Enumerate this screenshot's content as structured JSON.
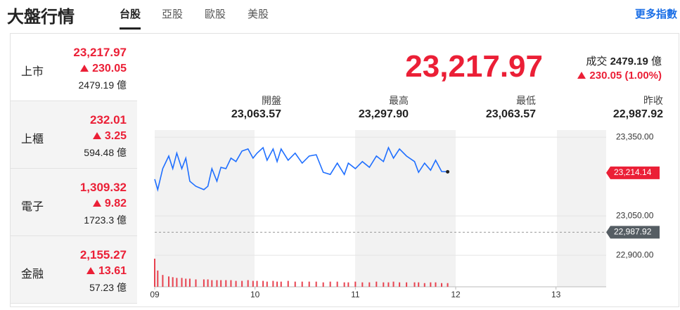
{
  "header": {
    "title": "大盤行情",
    "tabs": [
      "台股",
      "亞股",
      "歐股",
      "美股"
    ],
    "more": "更多指數"
  },
  "markets": [
    {
      "name": "上市",
      "price": "23,217.97",
      "change": "230.05",
      "volume": "2479.19 億"
    },
    {
      "name": "上櫃",
      "price": "232.01",
      "change": "3.25",
      "volume": "594.48 億"
    },
    {
      "name": "電子",
      "price": "1,309.32",
      "change": "9.82",
      "volume": "1723.3 億"
    },
    {
      "name": "金融",
      "price": "2,155.27",
      "change": "13.61",
      "volume": "57.23 億"
    }
  ],
  "summary": {
    "price": "23,217.97",
    "volume_label": "成交",
    "volume": "2479.19",
    "volume_unit": "億",
    "change": "230.05 (1.00%)",
    "stats": [
      {
        "label": "開盤",
        "value": "23,063.57"
      },
      {
        "label": "最高",
        "value": "23,297.90"
      },
      {
        "label": "最低",
        "value": "23,063.57"
      },
      {
        "label": "昨收",
        "value": "22,987.92"
      }
    ]
  },
  "chart_data": {
    "type": "line",
    "color": "#1f6fff",
    "x": [
      9.0,
      9.03,
      9.08,
      9.14,
      9.18,
      9.22,
      9.27,
      9.31,
      9.35,
      9.41,
      9.49,
      9.53,
      9.57,
      9.62,
      9.66,
      9.71,
      9.76,
      9.81,
      9.87,
      9.93,
      9.98,
      10.02,
      10.08,
      10.12,
      10.18,
      10.22,
      10.26,
      10.33,
      10.4,
      10.47,
      10.54,
      10.61,
      10.68,
      10.75,
      10.82,
      10.89,
      10.93,
      11.0,
      11.07,
      11.14,
      11.21,
      11.28,
      11.33,
      11.38,
      11.44,
      11.51,
      11.59,
      11.63,
      11.69,
      11.75,
      11.8,
      11.86,
      11.92
    ],
    "values": [
      23190,
      23150,
      23230,
      23278,
      23230,
      23289,
      23230,
      23270,
      23182,
      23163,
      23150,
      23163,
      23230,
      23182,
      23235,
      23230,
      23270,
      23257,
      23297,
      23305,
      23270,
      23289,
      23310,
      23262,
      23305,
      23257,
      23305,
      23262,
      23289,
      23251,
      23278,
      23283,
      23216,
      23208,
      23251,
      23208,
      23251,
      23230,
      23257,
      23235,
      23278,
      23257,
      23310,
      23270,
      23305,
      23278,
      23257,
      23216,
      23251,
      23224,
      23262,
      23219,
      23218
    ],
    "volume": {
      "color": "#e8424f",
      "values": [
        38,
        22,
        16,
        14,
        13,
        12,
        12,
        11,
        11,
        10,
        10,
        10,
        9,
        9,
        9,
        9,
        9,
        8,
        8,
        9,
        8,
        8,
        8,
        7,
        8,
        7,
        7,
        8,
        7,
        7,
        7,
        7,
        6,
        7,
        7,
        6,
        6,
        7,
        6,
        6,
        7,
        6,
        6,
        7,
        6,
        6,
        6,
        6,
        5,
        6,
        6,
        5,
        5
      ]
    },
    "xlim": [
      9,
      13.5
    ],
    "xticks": [
      {
        "value": 9,
        "label": "09"
      },
      10,
      11,
      12,
      13
    ],
    "ylim": [
      22780,
      23377
    ],
    "yticks": [
      {
        "value": 23350,
        "label": "23,350.00"
      },
      {
        "value": 23050,
        "label": "23,050.00"
      },
      {
        "value": 22900,
        "label": "22,900.00"
      }
    ],
    "price_tag": {
      "value": 23214.14,
      "label": "23,214.14"
    },
    "previous_close": {
      "value": 22987.92,
      "label": "22,987.92"
    },
    "grid": true
  }
}
